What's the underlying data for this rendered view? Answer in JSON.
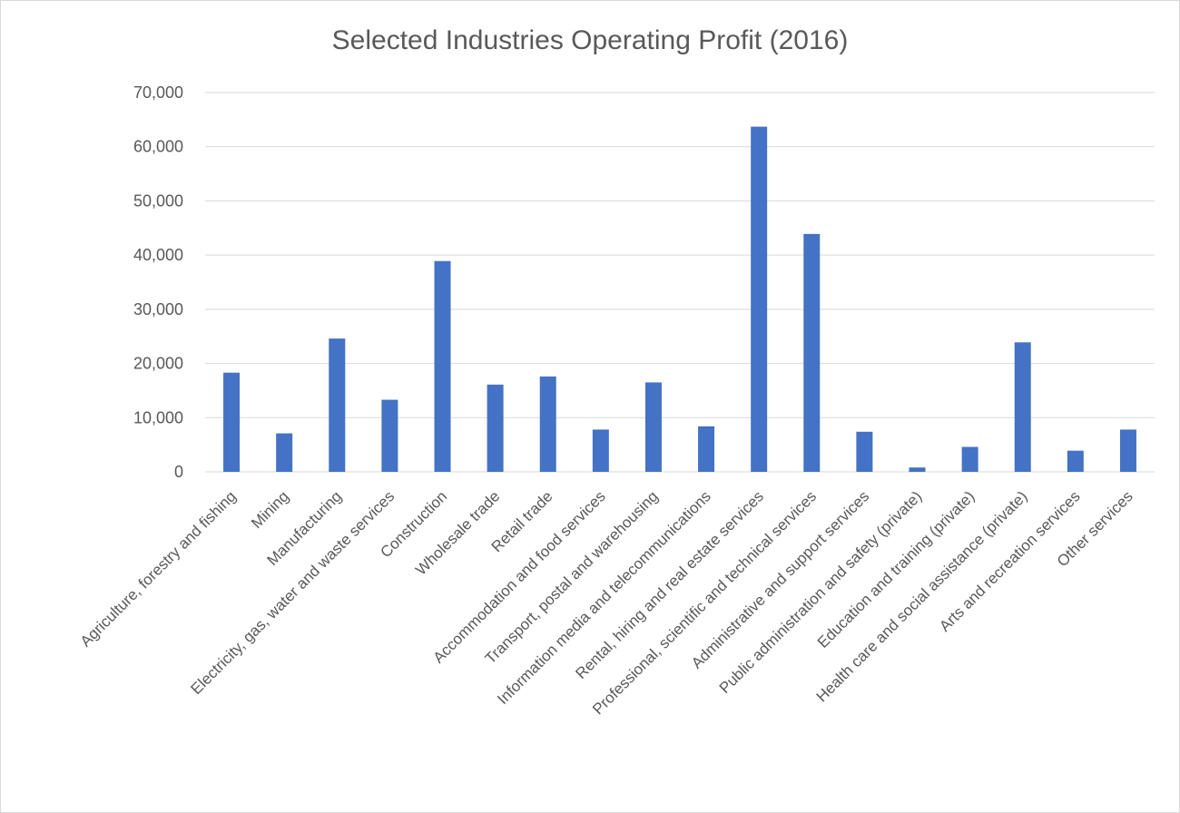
{
  "chart_data": {
    "type": "bar",
    "title": "Selected Industries Operating Profit (2016)",
    "xlabel": "",
    "ylabel": "",
    "ylim": [
      0,
      70000
    ],
    "yticks": [
      "0",
      "10,000",
      "20,000",
      "30,000",
      "40,000",
      "50,000",
      "60,000",
      "70,000"
    ],
    "grid": true,
    "legend": "none",
    "bar_color": "#4472c4",
    "categories": [
      "Agriculture, forestry and fishing",
      "Mining",
      "Manufacturing",
      "Electricity, gas, water and waste services",
      "Construction",
      "Wholesale trade",
      "Retail trade",
      "Accommodation and food services",
      "Transport, postal and warehousing",
      "Information media and telecommunications",
      "Rental, hiring and real estate services",
      "Professional, scientific and technical services",
      "Administrative and support services",
      "Public administration and safety (private)",
      "Education and training (private)",
      "Health care and social assistance (private)",
      "Arts and recreation services",
      "Other services"
    ],
    "values": [
      18300,
      7100,
      24600,
      13300,
      38900,
      16100,
      17600,
      7800,
      16500,
      8400,
      63700,
      43900,
      7400,
      800,
      4600,
      23900,
      3900,
      7800
    ]
  }
}
